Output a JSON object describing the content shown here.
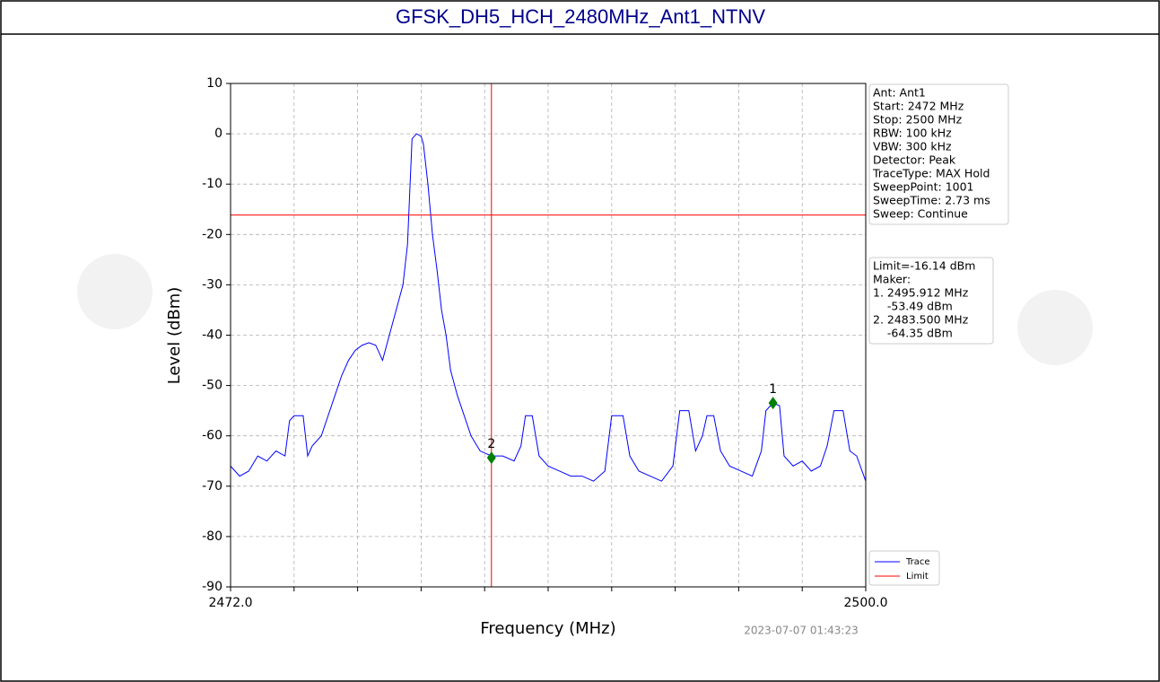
{
  "chart_data": {
    "type": "line",
    "title": "GFSK_DH5_HCH_2480MHz_Ant1_NTNV",
    "xlabel": "Frequency (MHz)",
    "ylabel": "Level (dBm)",
    "timestamp": "2023-07-07 01:43:23",
    "xlim": [
      2472,
      2500
    ],
    "ylim": [
      -90,
      10
    ],
    "xticks": [
      {
        "value": 2472,
        "label": "2472.0"
      },
      {
        "value": 2500,
        "label": "2500.0"
      }
    ],
    "xminor_ticks": [
      2474.8,
      2477.6,
      2480.4,
      2483.2,
      2486,
      2488.8,
      2491.6,
      2494.4,
      2497.2
    ],
    "yticks": [
      10,
      0,
      -10,
      -20,
      -30,
      -40,
      -50,
      -60,
      -70,
      -80,
      -90
    ],
    "grid": true,
    "x": [
      2472,
      2472.4,
      2472.8,
      2473.2,
      2473.6,
      2474,
      2474.4,
      2474.6,
      2474.8,
      2475.2,
      2475.4,
      2475.6,
      2476,
      2476.3,
      2476.6,
      2476.9,
      2477.2,
      2477.5,
      2477.8,
      2478.1,
      2478.4,
      2478.7,
      2479,
      2479.3,
      2479.6,
      2479.8,
      2480,
      2480.2,
      2480.4,
      2480.5,
      2480.7,
      2480.9,
      2481.1,
      2481.3,
      2481.5,
      2481.7,
      2482,
      2482.3,
      2482.6,
      2483,
      2483.5,
      2484,
      2484.5,
      2484.8,
      2485,
      2485.3,
      2485.6,
      2486,
      2486.5,
      2487,
      2487.5,
      2488,
      2488.5,
      2488.8,
      2489.3,
      2489.6,
      2490,
      2490.5,
      2491,
      2491.5,
      2491.8,
      2492.2,
      2492.5,
      2492.8,
      2493,
      2493.3,
      2493.6,
      2494,
      2494.5,
      2495,
      2495.4,
      2495.6,
      2495.9,
      2496.2,
      2496.4,
      2496.8,
      2497.2,
      2497.6,
      2498,
      2498.3,
      2498.6,
      2499,
      2499.3,
      2499.6,
      2500
    ],
    "series": [
      {
        "name": "Trace",
        "color": "#0000ff",
        "values": [
          -66,
          -68,
          -67,
          -64,
          -65,
          -63,
          -64,
          -57,
          -56,
          -56,
          -64,
          -62,
          -60,
          -56,
          -52,
          -48,
          -45,
          -43,
          -42,
          -41.5,
          -42,
          -45,
          -40,
          -35,
          -30,
          -22,
          -1,
          0,
          -0.5,
          -2,
          -10,
          -20,
          -27,
          -35,
          -40,
          -47,
          -52,
          -56,
          -60,
          -63,
          -64,
          -64,
          -65,
          -62,
          -56,
          -56,
          -64,
          -66,
          -67,
          -68,
          -68,
          -69,
          -67,
          -56,
          -56,
          -64,
          -67,
          -68,
          -69,
          -66,
          -55,
          -55,
          -63,
          -60,
          -56,
          -56,
          -63,
          -66,
          -67,
          -68,
          -63,
          -55,
          -53.5,
          -54,
          -64,
          -66,
          -65,
          -67,
          -66,
          -62,
          -55,
          -55,
          -63,
          -64,
          -69
        ]
      }
    ],
    "limit_line": {
      "name": "Limit",
      "color": "#ff0000",
      "value": -16.14
    },
    "markers": [
      {
        "label": "1",
        "x": 2495.912,
        "y": -53.49,
        "color": "#008000"
      },
      {
        "label": "2",
        "x": 2483.5,
        "y": -64.35,
        "color": "#008000"
      }
    ],
    "info": [
      "Ant: Ant1",
      "Start: 2472 MHz",
      "Stop: 2500 MHz",
      "RBW: 100 kHz",
      "VBW: 300 kHz",
      "Detector: Peak",
      "TraceType: MAX Hold",
      "SweepPoint: 1001",
      "SweepTime: 2.73 ms",
      "Sweep: Continue"
    ],
    "marker_info": [
      "Limit=-16.14 dBm",
      "Maker:",
      "1. 2495.912 MHz",
      "    -53.49 dBm",
      "2. 2483.500 MHz",
      "    -64.35 dBm"
    ]
  }
}
